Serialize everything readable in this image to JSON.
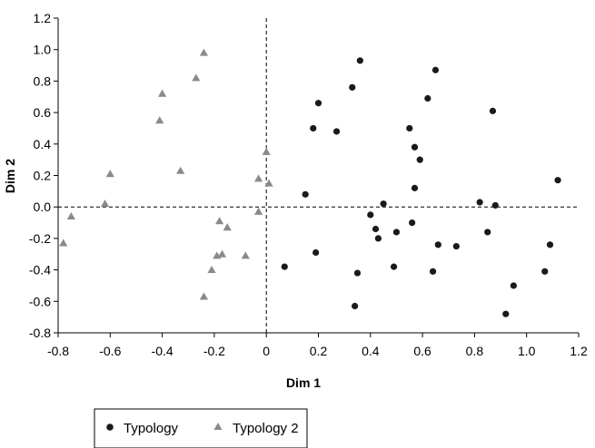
{
  "chart_data": {
    "type": "scatter",
    "xlabel": "Dim 1",
    "ylabel": "Dim 2",
    "xlim": [
      -0.8,
      1.2
    ],
    "ylim": [
      -0.8,
      1.2
    ],
    "x_ticks": [
      "-0.8",
      "-0.6",
      "-0.4",
      "-0.2",
      "0",
      "0.2",
      "0.4",
      "0.6",
      "0.8",
      "1.0",
      "1.2"
    ],
    "y_ticks": [
      "1.2",
      "1.0",
      "0.8",
      "0.6",
      "0.4",
      "0.2",
      "0.0",
      "-0.2",
      "-0.4",
      "-0.6",
      "-0.8"
    ],
    "grid": false,
    "reference_lines": {
      "x": 0,
      "y": 0,
      "style": "dashed"
    },
    "legend_position": "bottom-left",
    "series": [
      {
        "name": "Typology",
        "marker": "circle",
        "color": "#1a1a1a",
        "points": [
          [
            0.36,
            0.93
          ],
          [
            0.65,
            0.87
          ],
          [
            0.33,
            0.76
          ],
          [
            0.62,
            0.69
          ],
          [
            0.2,
            0.66
          ],
          [
            0.87,
            0.61
          ],
          [
            0.18,
            0.5
          ],
          [
            0.27,
            0.48
          ],
          [
            0.55,
            0.5
          ],
          [
            0.57,
            0.38
          ],
          [
            0.59,
            0.3
          ],
          [
            0.57,
            0.12
          ],
          [
            0.15,
            0.08
          ],
          [
            1.12,
            0.17
          ],
          [
            0.82,
            0.03
          ],
          [
            0.88,
            0.01
          ],
          [
            0.45,
            0.02
          ],
          [
            0.4,
            -0.05
          ],
          [
            0.42,
            -0.14
          ],
          [
            0.56,
            -0.1
          ],
          [
            0.5,
            -0.16
          ],
          [
            0.85,
            -0.16
          ],
          [
            0.43,
            -0.2
          ],
          [
            0.66,
            -0.24
          ],
          [
            0.73,
            -0.25
          ],
          [
            1.09,
            -0.24
          ],
          [
            0.19,
            -0.29
          ],
          [
            0.07,
            -0.38
          ],
          [
            0.49,
            -0.38
          ],
          [
            0.35,
            -0.42
          ],
          [
            0.64,
            -0.41
          ],
          [
            1.07,
            -0.41
          ],
          [
            0.95,
            -0.5
          ],
          [
            0.34,
            -0.63
          ],
          [
            0.92,
            -0.68
          ]
        ]
      },
      {
        "name": "Typology 2",
        "marker": "triangle",
        "color": "#8a8a8a",
        "points": [
          [
            -0.24,
            0.98
          ],
          [
            -0.27,
            0.82
          ],
          [
            -0.4,
            0.72
          ],
          [
            -0.41,
            0.55
          ],
          [
            -0.33,
            0.23
          ],
          [
            -0.6,
            0.21
          ],
          [
            -0.62,
            0.02
          ],
          [
            0.0,
            0.35
          ],
          [
            -0.03,
            0.18
          ],
          [
            0.01,
            0.15
          ],
          [
            -0.03,
            -0.03
          ],
          [
            -0.75,
            -0.06
          ],
          [
            -0.78,
            -0.23
          ],
          [
            -0.18,
            -0.09
          ],
          [
            -0.15,
            -0.13
          ],
          [
            -0.17,
            -0.3
          ],
          [
            -0.19,
            -0.31
          ],
          [
            -0.08,
            -0.31
          ],
          [
            -0.21,
            -0.4
          ],
          [
            -0.24,
            -0.57
          ]
        ]
      }
    ]
  },
  "colors": {
    "axis": "#000000",
    "typology": "#1a1a1a",
    "typology2": "#8a8a8a"
  }
}
